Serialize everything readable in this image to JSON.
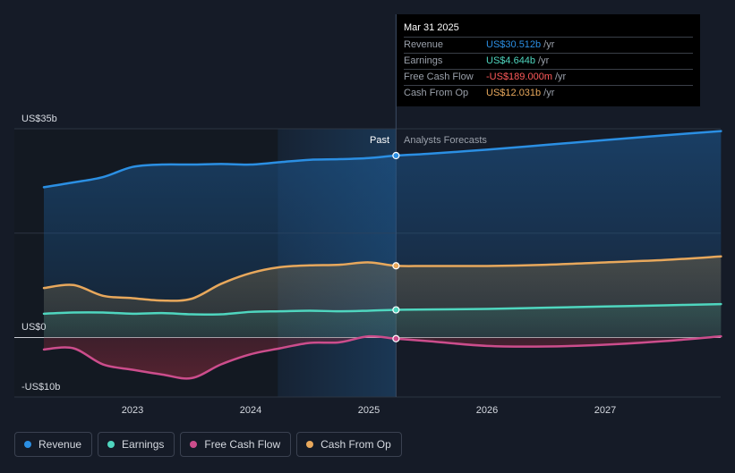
{
  "chart_data": {
    "type": "line",
    "x_ticks": [
      "2023",
      "2024",
      "2025",
      "2026",
      "2027"
    ],
    "y_tick_labels": [
      "US$35b",
      "US$0",
      "-US$10b"
    ],
    "ylim": [
      -10,
      35
    ],
    "past_label": "Past",
    "forecast_label": "Analysts Forecasts",
    "forecast_start": 2025.23,
    "series": [
      {
        "name": "Revenue",
        "color": "#2b8fe3",
        "points": [
          [
            2022.25,
            25.2
          ],
          [
            2022.5,
            26.0
          ],
          [
            2022.75,
            26.9
          ],
          [
            2023.0,
            28.6
          ],
          [
            2023.25,
            29.0
          ],
          [
            2023.5,
            29.0
          ],
          [
            2023.75,
            29.1
          ],
          [
            2024.0,
            29.0
          ],
          [
            2024.25,
            29.4
          ],
          [
            2024.5,
            29.8
          ],
          [
            2024.75,
            29.9
          ],
          [
            2025.0,
            30.1
          ],
          [
            2025.23,
            30.5
          ],
          [
            2025.5,
            30.8
          ],
          [
            2026.0,
            31.5
          ],
          [
            2026.5,
            32.3
          ],
          [
            2027.0,
            33.1
          ],
          [
            2027.5,
            33.9
          ],
          [
            2027.98,
            34.6
          ]
        ]
      },
      {
        "name": "Earnings",
        "color": "#4fd6bf",
        "points": [
          [
            2022.25,
            4.0
          ],
          [
            2022.5,
            4.2
          ],
          [
            2022.75,
            4.2
          ],
          [
            2023.0,
            4.0
          ],
          [
            2023.25,
            4.1
          ],
          [
            2023.5,
            3.9
          ],
          [
            2023.75,
            3.9
          ],
          [
            2024.0,
            4.3
          ],
          [
            2024.25,
            4.4
          ],
          [
            2024.5,
            4.5
          ],
          [
            2024.75,
            4.4
          ],
          [
            2025.0,
            4.5
          ],
          [
            2025.23,
            4.64
          ],
          [
            2025.5,
            4.7
          ],
          [
            2026.0,
            4.8
          ],
          [
            2026.5,
            5.0
          ],
          [
            2027.0,
            5.2
          ],
          [
            2027.5,
            5.4
          ],
          [
            2027.98,
            5.6
          ]
        ]
      },
      {
        "name": "Free Cash Flow",
        "color": "#cc4d8c",
        "points": [
          [
            2022.25,
            -2.0
          ],
          [
            2022.5,
            -1.8
          ],
          [
            2022.75,
            -4.5
          ],
          [
            2023.0,
            -5.4
          ],
          [
            2023.25,
            -6.2
          ],
          [
            2023.5,
            -6.8
          ],
          [
            2023.75,
            -4.5
          ],
          [
            2024.0,
            -2.8
          ],
          [
            2024.25,
            -1.8
          ],
          [
            2024.5,
            -0.9
          ],
          [
            2024.75,
            -0.8
          ],
          [
            2025.0,
            0.2
          ],
          [
            2025.23,
            -0.189
          ],
          [
            2025.5,
            -0.6
          ],
          [
            2026.0,
            -1.4
          ],
          [
            2026.5,
            -1.5
          ],
          [
            2027.0,
            -1.2
          ],
          [
            2027.5,
            -0.6
          ],
          [
            2027.98,
            0.2
          ]
        ]
      },
      {
        "name": "Cash From Op",
        "color": "#e8a85c",
        "points": [
          [
            2022.25,
            8.3
          ],
          [
            2022.5,
            8.8
          ],
          [
            2022.75,
            7.0
          ],
          [
            2023.0,
            6.6
          ],
          [
            2023.25,
            6.2
          ],
          [
            2023.5,
            6.5
          ],
          [
            2023.75,
            9.0
          ],
          [
            2024.0,
            10.8
          ],
          [
            2024.25,
            11.8
          ],
          [
            2024.5,
            12.1
          ],
          [
            2024.75,
            12.2
          ],
          [
            2025.0,
            12.6
          ],
          [
            2025.23,
            12.03
          ],
          [
            2025.5,
            12.0
          ],
          [
            2026.0,
            12.0
          ],
          [
            2026.5,
            12.2
          ],
          [
            2027.0,
            12.6
          ],
          [
            2027.5,
            13.0
          ],
          [
            2027.98,
            13.6
          ]
        ]
      }
    ],
    "legend": [
      "Revenue",
      "Earnings",
      "Free Cash Flow",
      "Cash From Op"
    ],
    "legend_placement": "bottom-left",
    "grid": true
  },
  "tooltip": {
    "date": "Mar 31 2025",
    "rows": [
      {
        "label": "Revenue",
        "value": "US$30.512b",
        "unit": "/yr",
        "color": "#2b8fe3"
      },
      {
        "label": "Earnings",
        "value": "US$4.644b",
        "unit": "/yr",
        "color": "#4fd6bf"
      },
      {
        "label": "Free Cash Flow",
        "value": "-US$189.000m",
        "unit": "/yr",
        "color": "#ff5a5a"
      },
      {
        "label": "Cash From Op",
        "value": "US$12.031b",
        "unit": "/yr",
        "color": "#e8a85c"
      }
    ]
  },
  "legend_items": [
    {
      "label": "Revenue",
      "color": "#2b8fe3"
    },
    {
      "label": "Earnings",
      "color": "#4fd6bf"
    },
    {
      "label": "Free Cash Flow",
      "color": "#cc4d8c"
    },
    {
      "label": "Cash From Op",
      "color": "#e8a85c"
    }
  ]
}
